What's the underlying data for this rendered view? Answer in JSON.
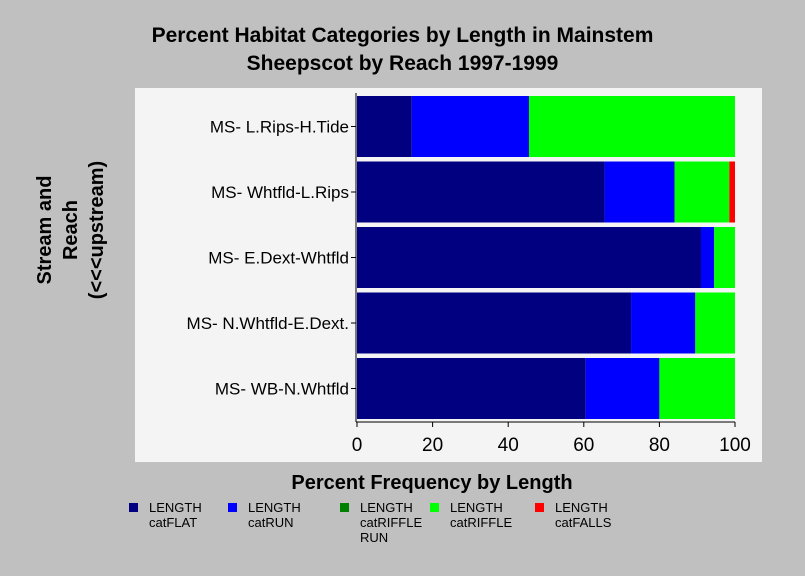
{
  "chart_data": {
    "type": "bar",
    "orientation": "horizontal",
    "stacked": true,
    "title_line1": "Percent Habitat Categories by Length in Mainstem",
    "title_line2": "Sheepscot by Reach 1997-1999",
    "xlabel": "Percent Frequency by Length",
    "ylabel_line1": "Stream and",
    "ylabel_line2": "Reach",
    "ylabel_line3": "(<<<upstream)",
    "xlim": [
      0,
      100
    ],
    "xticks": [
      "0",
      "20",
      "40",
      "60",
      "80",
      "100"
    ],
    "categories": [
      "MS- L.Rips-H.Tide",
      "MS- Whtfld-L.Rips",
      "MS- E.Dext-Whtfld",
      "MS- N.Whtfld-E.Dext.",
      "MS- WB-N.Whtfld"
    ],
    "series": [
      {
        "name": "LENGTH\ncatFLAT",
        "color": "#000080",
        "values": [
          14.5,
          65.5,
          91,
          72.5,
          60.5
        ]
      },
      {
        "name": "LENGTH\ncatRUN",
        "color": "#0000ff",
        "values": [
          31,
          18.5,
          3.5,
          17,
          19.5
        ]
      },
      {
        "name": "LENGTH\ncatRIFFLE\nRUN",
        "color": "#008000",
        "values": [
          0,
          0,
          0,
          0,
          0
        ]
      },
      {
        "name": "LENGTH\ncatRIFFLE",
        "color": "#00ff00",
        "values": [
          54.5,
          14.5,
          5.5,
          10.5,
          20
        ]
      },
      {
        "name": "LENGTH\ncatFALLS",
        "color": "#ff0000",
        "values": [
          0,
          1.5,
          0,
          0,
          0
        ]
      }
    ],
    "grid": false,
    "legend_position": "bottom"
  }
}
